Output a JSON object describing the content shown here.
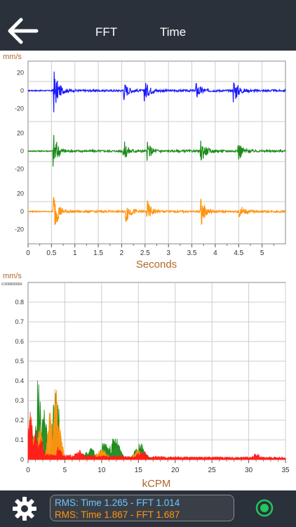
{
  "header": {
    "tabs": [
      {
        "label": "FFT"
      },
      {
        "label": "Time"
      }
    ]
  },
  "time_chart": {
    "unit": "mm/s",
    "xlabel": "Seconds",
    "colors": {
      "ch1": "#1a1aff",
      "ch2": "#1c8c1c",
      "ch3": "#ff9410",
      "label": "#b0682a"
    }
  },
  "fft_chart": {
    "unit": "mm/s",
    "xlabel": "kCPM",
    "ymax_label": "0.900000004"
  },
  "chart_data": [
    {
      "type": "line",
      "title": "",
      "xlabel": "Seconds",
      "ylabel": "mm/s",
      "xlim": [
        0,
        5.5
      ],
      "x_ticks": [
        "0",
        "0.5",
        "1",
        "1.5",
        "2",
        "2.5",
        "3",
        "3.5",
        "4",
        "4.5",
        "5"
      ],
      "y_ticks_per_channel": [
        "20",
        "0",
        "-20"
      ],
      "grid": true,
      "series": [
        {
          "color": "#1a1aff",
          "ylim": [
            -25,
            25
          ],
          "peaks": [
            [
              0.55,
              25
            ],
            [
              2.05,
              10
            ],
            [
              2.5,
              11
            ],
            [
              3.6,
              9
            ],
            [
              4.4,
              14
            ]
          ]
        },
        {
          "color": "#1c8c1c",
          "ylim": [
            -25,
            25
          ],
          "peaks": [
            [
              0.55,
              20
            ],
            [
              2.05,
              11
            ],
            [
              2.55,
              10
            ],
            [
              3.7,
              12
            ],
            [
              4.5,
              10
            ]
          ]
        },
        {
          "color": "#ff9410",
          "ylim": [
            -25,
            25
          ],
          "peaks": [
            [
              0.55,
              24
            ],
            [
              2.1,
              12
            ],
            [
              2.55,
              11
            ],
            [
              3.7,
              14
            ],
            [
              4.5,
              10
            ]
          ]
        }
      ]
    },
    {
      "type": "line",
      "title": "",
      "xlabel": "kCPM",
      "ylabel": "mm/s",
      "xlim": [
        0,
        35
      ],
      "ylim": [
        0,
        0.9
      ],
      "x_ticks": [
        "0",
        "5",
        "10",
        "15",
        "20",
        "25",
        "30",
        "35"
      ],
      "y_ticks": [
        "0.8",
        "0.7",
        "0.6",
        "0.5",
        "0.4",
        "0.3",
        "0.2",
        "0.1",
        "0"
      ],
      "grid": true,
      "series": [
        {
          "color": "#1c8c1c",
          "peaks": [
            [
              0.5,
              0.18
            ],
            [
              1.4,
              0.43
            ],
            [
              2.2,
              0.3
            ],
            [
              3.6,
              0.38
            ],
            [
              4.0,
              0.32
            ],
            [
              8.5,
              0.06
            ],
            [
              10.5,
              0.1
            ],
            [
              11.8,
              0.12
            ],
            [
              15.2,
              0.09
            ]
          ]
        },
        {
          "color": "#ff9410",
          "peaks": [
            [
              0.4,
              0.26
            ],
            [
              1.6,
              0.18
            ],
            [
              3.0,
              0.25
            ],
            [
              3.8,
              0.42
            ],
            [
              4.3,
              0.2
            ],
            [
              10.0,
              0.06
            ],
            [
              15.0,
              0.05
            ]
          ]
        },
        {
          "color": "#ff1a1a",
          "peaks": [
            [
              0.3,
              0.26
            ],
            [
              1.0,
              0.16
            ],
            [
              1.8,
              0.12
            ],
            [
              4.2,
              0.08
            ],
            [
              7.0,
              0.05
            ],
            [
              15.5,
              0.05
            ],
            [
              31,
              0.03
            ]
          ]
        }
      ]
    }
  ],
  "footer": {
    "rms_time_label": "RMS: Time 1.265 - FFT 1.014",
    "rms_fft_label": "RMS: Time 1.867 - FFT 1.687",
    "rms_color_1": "#6ec6ff",
    "rms_color_2": "#ff9410",
    "record_color": "#22c55e"
  }
}
